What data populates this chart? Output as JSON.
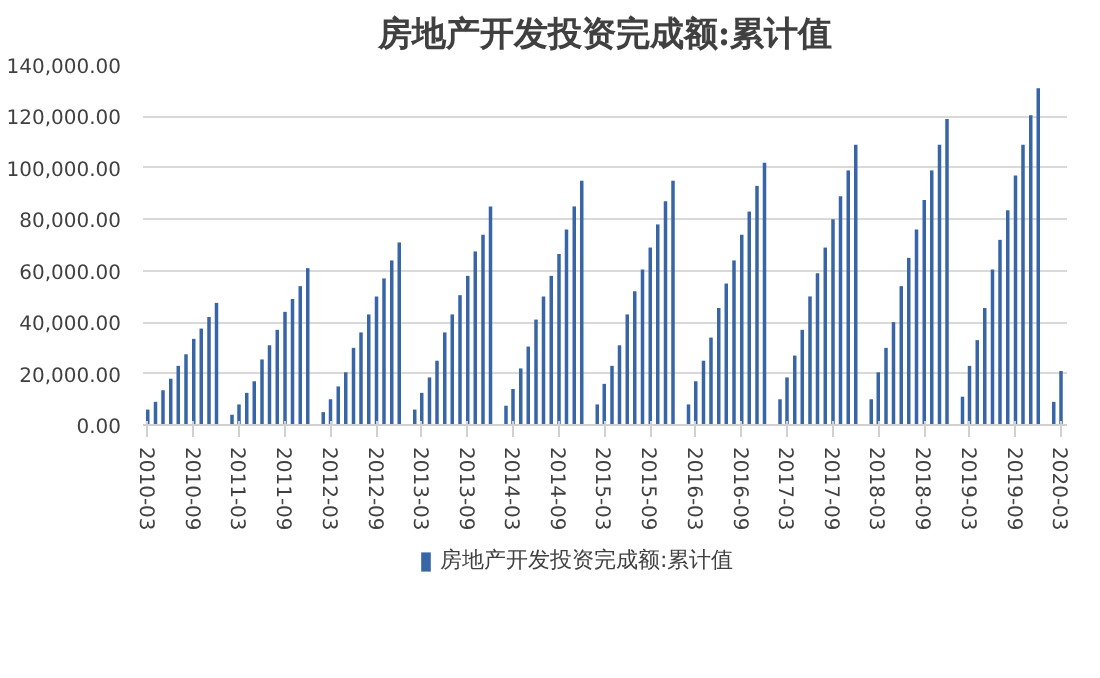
{
  "chart_data": {
    "type": "bar",
    "title": "房地产开发投资完成额:累计值",
    "x": [
      "2010-03",
      "2010-04",
      "2010-05",
      "2010-06",
      "2010-07",
      "2010-08",
      "2010-09",
      "2010-10",
      "2010-11",
      "2010-12",
      "2011-02",
      "2011-03",
      "2011-04",
      "2011-05",
      "2011-06",
      "2011-07",
      "2011-08",
      "2011-09",
      "2011-10",
      "2011-11",
      "2011-12",
      "2012-02",
      "2012-03",
      "2012-04",
      "2012-05",
      "2012-06",
      "2012-07",
      "2012-08",
      "2012-09",
      "2012-10",
      "2012-11",
      "2012-12",
      "2013-02",
      "2013-03",
      "2013-04",
      "2013-05",
      "2013-06",
      "2013-07",
      "2013-08",
      "2013-09",
      "2013-10",
      "2013-11",
      "2013-12",
      "2014-02",
      "2014-03",
      "2014-04",
      "2014-05",
      "2014-06",
      "2014-07",
      "2014-08",
      "2014-09",
      "2014-10",
      "2014-11",
      "2014-12",
      "2015-02",
      "2015-03",
      "2015-04",
      "2015-05",
      "2015-06",
      "2015-07",
      "2015-08",
      "2015-09",
      "2015-10",
      "2015-11",
      "2015-12",
      "2016-02",
      "2016-03",
      "2016-04",
      "2016-05",
      "2016-06",
      "2016-07",
      "2016-08",
      "2016-09",
      "2016-10",
      "2016-11",
      "2016-12",
      "2017-02",
      "2017-03",
      "2017-04",
      "2017-05",
      "2017-06",
      "2017-07",
      "2017-08",
      "2017-09",
      "2017-10",
      "2017-11",
      "2017-12",
      "2018-02",
      "2018-03",
      "2018-04",
      "2018-05",
      "2018-06",
      "2018-07",
      "2018-08",
      "2018-09",
      "2018-10",
      "2018-11",
      "2018-12",
      "2019-02",
      "2019-03",
      "2019-04",
      "2019-05",
      "2019-06",
      "2019-07",
      "2019-08",
      "2019-09",
      "2019-10",
      "2019-11",
      "2019-12",
      "2020-02",
      "2020-03"
    ],
    "series": [
      {
        "name": "房地产开发投资完成额:累计值",
        "color": "#3765a6",
        "values": [
          6000,
          9000,
          13500,
          18000,
          23000,
          27500,
          33500,
          37500,
          42000,
          47500,
          4000,
          8000,
          12500,
          17000,
          25500,
          31000,
          37000,
          44000,
          49000,
          54000,
          61000,
          5000,
          10000,
          15000,
          20500,
          30000,
          36000,
          43000,
          50000,
          57000,
          64000,
          71000,
          6000,
          12500,
          18500,
          25000,
          36000,
          43000,
          50500,
          58000,
          67500,
          74000,
          85000,
          7500,
          14000,
          22000,
          30500,
          41000,
          50000,
          58000,
          66500,
          76000,
          85000,
          95000,
          8000,
          16000,
          23000,
          31000,
          43000,
          52000,
          60500,
          69000,
          78000,
          87000,
          95000,
          8000,
          17000,
          25000,
          34000,
          45500,
          55000,
          64000,
          74000,
          83000,
          93000,
          102000,
          10000,
          18500,
          27000,
          37000,
          50000,
          59000,
          69000,
          80000,
          89000,
          99000,
          109000,
          10000,
          20500,
          30000,
          40000,
          54000,
          65000,
          76000,
          87500,
          99000,
          109000,
          119000,
          11000,
          23000,
          33000,
          45500,
          60500,
          72000,
          83500,
          97000,
          109000,
          120500,
          131000,
          9000,
          21000
        ]
      }
    ],
    "xlim": [
      "2010-02-10",
      "2020-03-25"
    ],
    "xticks": [
      "2010-03",
      "2010-09",
      "2011-03",
      "2011-09",
      "2012-03",
      "2012-09",
      "2013-03",
      "2013-09",
      "2014-03",
      "2014-09",
      "2015-03",
      "2015-09",
      "2016-03",
      "2016-09",
      "2017-03",
      "2017-09",
      "2018-03",
      "2018-09",
      "2019-03",
      "2019-09",
      "2020-03"
    ],
    "ylim": [
      0,
      140000
    ],
    "yticks": [
      {
        "value": 0,
        "label": "0.00"
      },
      {
        "value": 20000,
        "label": "20,000.00"
      },
      {
        "value": 40000,
        "label": "40,000.00"
      },
      {
        "value": 60000,
        "label": "60,000.00"
      },
      {
        "value": 80000,
        "label": "80,000.00"
      },
      {
        "value": 100000,
        "label": "100,000.00"
      },
      {
        "value": 120000,
        "label": "120,000.00"
      },
      {
        "value": 140000,
        "label": "140,000.00"
      }
    ],
    "grid": "y",
    "legend": "bottom"
  }
}
